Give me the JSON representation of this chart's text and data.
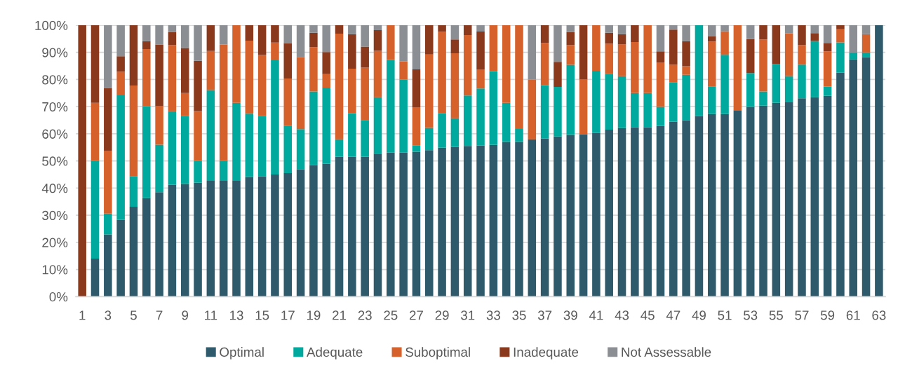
{
  "chart_data": {
    "type": "bar",
    "stacked": true,
    "categories": [
      "1",
      null,
      "3",
      null,
      "5",
      null,
      "7",
      null,
      "9",
      null,
      "11",
      null,
      "13",
      null,
      "15",
      null,
      "17",
      null,
      "19",
      null,
      "21",
      null,
      "23",
      null,
      "25",
      null,
      "27",
      null,
      "29",
      null,
      "31",
      null,
      "33",
      null,
      "35",
      null,
      "37",
      null,
      "39",
      null,
      "41",
      null,
      "43",
      null,
      "45",
      null,
      "47",
      null,
      "49",
      null,
      "51",
      null,
      "53",
      null,
      "55",
      null,
      "57",
      null,
      "59",
      null,
      "61",
      null,
      "63"
    ],
    "series": [
      {
        "name": "Optimal",
        "color": "#2e5a6c",
        "values": [
          0,
          14.0,
          22.9,
          28.3,
          33.1,
          36.3,
          38.5,
          41.2,
          41.5,
          42.0,
          42.7,
          42.7,
          42.7,
          44.1,
          44.3,
          45.0,
          45.5,
          46.9,
          48.5,
          49.0,
          51.5,
          51.5,
          51.5,
          52.7,
          53.1,
          53.1,
          53.4,
          54.0,
          54.9,
          55.2,
          55.5,
          55.7,
          55.9,
          57.0,
          57.0,
          58.0,
          58.3,
          59.0,
          59.6,
          59.8,
          60.3,
          61.5,
          62.1,
          62.4,
          62.4,
          62.9,
          64.5,
          65.0,
          66.5,
          67.3,
          67.3,
          68.7,
          69.9,
          70.4,
          71.4,
          71.8,
          73.1,
          73.5,
          74.0,
          82.5,
          87.4,
          88.2,
          100
        ]
      },
      {
        "name": "Adequate",
        "color": "#00a99e",
        "values": [
          0,
          36.0,
          7.7,
          45.9,
          11.2,
          33.9,
          17.5,
          27.1,
          25.0,
          8.0,
          33.4,
          7.3,
          28.7,
          23.3,
          22.2,
          42.1,
          17.5,
          14.8,
          27.1,
          28.0,
          6.5,
          16.1,
          13.6,
          20.8,
          34.1,
          26.9,
          2.4,
          8.2,
          12.6,
          10.5,
          18.6,
          21.0,
          27.2,
          14.4,
          4.8,
          0,
          19.6,
          18.3,
          25.8,
          0,
          22.9,
          20.6,
          19.1,
          12.6,
          12.6,
          7.0,
          14.5,
          16.7,
          33.5,
          10.2,
          21.8,
          0,
          12.5,
          5.2,
          14.3,
          9.5,
          12.4,
          20.7,
          3.4,
          11.2,
          2.6,
          1.8,
          0
        ]
      },
      {
        "name": "Suboptimal",
        "color": "#d6612b",
        "values": [
          0,
          21.4,
          23.2,
          8.7,
          33.5,
          21.0,
          14.2,
          24.4,
          8.5,
          18.4,
          14.4,
          42.9,
          28.6,
          26.9,
          22.5,
          6.5,
          17.4,
          26.5,
          16.3,
          5.0,
          38.9,
          16.4,
          19.3,
          17.1,
          12.8,
          6.7,
          14.0,
          27.0,
          30.1,
          24.0,
          22.3,
          7.0,
          16.9,
          28.6,
          38.2,
          22.0,
          15.6,
          0,
          7.3,
          20.2,
          16.8,
          11.1,
          11.7,
          18.8,
          25.0,
          16.4,
          6.5,
          3.2,
          0,
          16.5,
          8.7,
          31.3,
          0,
          19.2,
          0,
          15.7,
          7.2,
          0,
          13.0,
          4.8,
          0,
          6.7,
          0
        ]
      },
      {
        "name": "Inadequate",
        "color": "#8b391d",
        "values": [
          100,
          28.6,
          23.1,
          5.7,
          22.2,
          2.9,
          22.7,
          4.8,
          16.6,
          18.5,
          9.5,
          0,
          0,
          5.7,
          11.0,
          6.4,
          13.0,
          0,
          5.3,
          8.1,
          3.1,
          12.7,
          7.7,
          7.6,
          0,
          0,
          13.9,
          10.8,
          2.4,
          5.1,
          3.6,
          14.0,
          0,
          0,
          0,
          0,
          6.5,
          9.2,
          4.8,
          20.0,
          0,
          4.0,
          3.8,
          6.2,
          0,
          4.1,
          12.9,
          9.2,
          0,
          2.0,
          0,
          0,
          12.5,
          5.2,
          14.3,
          0,
          7.3,
          2.9,
          3.1,
          1.5,
          0,
          0,
          0
        ]
      },
      {
        "name": "Not Assessable",
        "color": "#8b8e92",
        "values": [
          0,
          0,
          23.1,
          11.4,
          0,
          5.9,
          7.1,
          2.5,
          8.4,
          13.1,
          0,
          7.1,
          0,
          0,
          0,
          0,
          6.6,
          11.8,
          2.8,
          9.9,
          0,
          3.3,
          7.9,
          1.8,
          0,
          13.3,
          16.3,
          0,
          0,
          5.2,
          0,
          2.3,
          0,
          0,
          0,
          20.0,
          0,
          13.5,
          2.5,
          0,
          0,
          2.8,
          3.3,
          0,
          0,
          9.6,
          1.6,
          5.9,
          0,
          4.0,
          2.2,
          0,
          5.1,
          0,
          0,
          3.0,
          0,
          2.9,
          6.5,
          0,
          10.0,
          3.3,
          0
        ]
      }
    ],
    "ylim": [
      0,
      100
    ],
    "yticks": [
      {
        "value": 0,
        "label": "0%"
      },
      {
        "value": 10,
        "label": "10%"
      },
      {
        "value": 20,
        "label": "20%"
      },
      {
        "value": 30,
        "label": "30%"
      },
      {
        "value": 40,
        "label": "40%"
      },
      {
        "value": 50,
        "label": "50%"
      },
      {
        "value": 60,
        "label": "60%"
      },
      {
        "value": 70,
        "label": "70%"
      },
      {
        "value": 80,
        "label": "80%"
      },
      {
        "value": 90,
        "label": "90%"
      },
      {
        "value": 100,
        "label": "100%"
      }
    ],
    "grid": "y",
    "legend": "bottom"
  }
}
